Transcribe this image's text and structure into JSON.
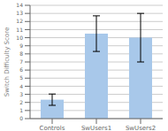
{
  "chart_data": {
    "type": "bar",
    "categories": [
      "Controls",
      "SwUsers1",
      "SwUsers2"
    ],
    "values": [
      2.34,
      10.5,
      10.0
    ],
    "errors_upper": [
      0.7,
      2.2,
      3.0
    ],
    "errors_lower": [
      0.7,
      2.2,
      3.0
    ],
    "color": "#a8c8ea",
    "ylabel": "Switch Difficulty Score",
    "ylim": [
      0,
      14
    ],
    "yticks": [
      0,
      1,
      2,
      3,
      4,
      5,
      6,
      7,
      8,
      9,
      10,
      11,
      12,
      13,
      14
    ],
    "grid": true
  }
}
